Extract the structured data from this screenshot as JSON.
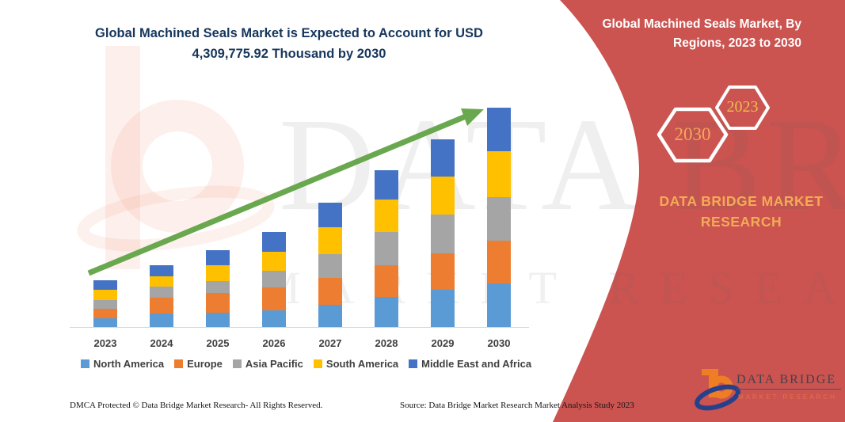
{
  "title_line1": "Global Machined Seals Market is Expected to Account for USD",
  "title_line2": "4,309,775.92 Thousand by 2030",
  "banner": {
    "heading_line1": "Global Machined Seals Market, By",
    "heading_line2": "Regions, 2023 to 2030",
    "hex_2030": "2030",
    "hex_2023": "2023",
    "brand_line1": "DATA BRIDGE MARKET",
    "brand_line2": "RESEARCH",
    "band_color": "#cb5350",
    "accent_gold": "#f1ac55"
  },
  "watermark": {
    "text1": "DATA BRIDGE",
    "text2": "MARKET RESEARCH"
  },
  "logo": {
    "line1": "DATA BRIDGE",
    "line2": "MARKET RESEARCH"
  },
  "footer": {
    "left": "DMCA Protected © Data Bridge Market Research-  All Rights Reserved.",
    "right": "Source: Data Bridge Market Research  Market Analysis Study 2023"
  },
  "chart_data": {
    "type": "bar",
    "stacked": true,
    "title": "Global Machined Seals Market is Expected to Account for USD 4,309,775.92 Thousand by 2030",
    "unit": "USD Thousand",
    "categories": [
      "2023",
      "2024",
      "2025",
      "2026",
      "2027",
      "2028",
      "2029",
      "2030"
    ],
    "series": [
      {
        "name": "North America",
        "color": "#5b9bd5",
        "values": [
          171400,
          259800,
          284700,
          331400,
          440300,
          596000,
          726600,
          851000
        ]
      },
      {
        "name": "Europe",
        "color": "#ed7d31",
        "values": [
          191600,
          311200,
          389000,
          440300,
          529000,
          622300,
          726600,
          846300
        ]
      },
      {
        "name": "Asia Pacific",
        "color": "#a5a5a5",
        "values": [
          171400,
          217800,
          233400,
          337600,
          455900,
          648700,
          751500,
          861900
        ]
      },
      {
        "name": "South America",
        "color": "#ffc000",
        "values": [
          197900,
          213200,
          311200,
          362600,
          533700,
          633300,
          751500,
          888600
        ]
      },
      {
        "name": "Middle East and Africa",
        "color": "#4472c4",
        "values": [
          191600,
          217800,
          295600,
          389000,
          477600,
          586600,
          726600,
          861975.92
        ]
      }
    ],
    "totals": [
      923900,
      1219800,
      1513900,
      1860900,
      2436500,
      3086900,
      3682800,
      4309775.92
    ],
    "ylim": [
      0,
      4500000
    ],
    "xlabel": "",
    "ylabel": "",
    "grid": false,
    "legend_position": "bottom",
    "trend_arrow": true,
    "trend_color": "#69a84f"
  }
}
